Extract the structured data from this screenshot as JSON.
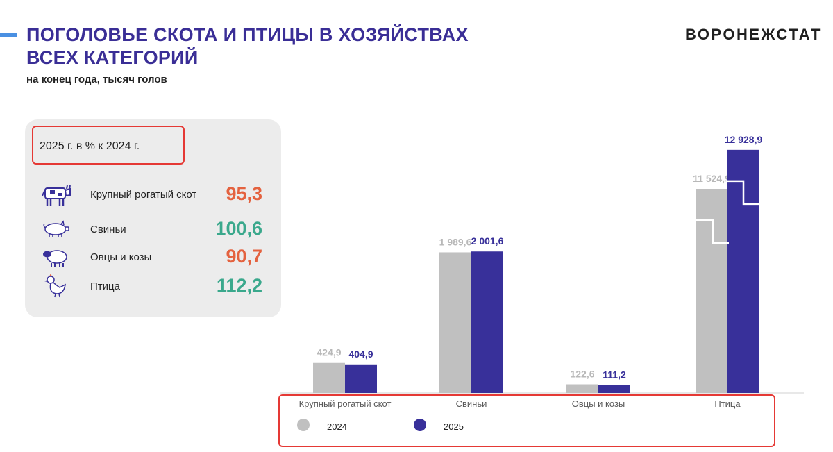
{
  "header": {
    "title_line1": "ПОГОЛОВЬЕ СКОТА И ПТИЦЫ В ХОЗЯЙСТВАХ",
    "title_line2": "ВСЕХ КАТЕГОРИЙ",
    "subtitle": "на конец года, тысяч голов",
    "brand": "ВОРОНЕЖСТАТ"
  },
  "panel": {
    "heading": "2025 г. в % к  2024 г.",
    "rows": [
      {
        "label": "Крупный рогатый скот",
        "value": "95,3",
        "icon": "cow-icon",
        "color": "#e4623f"
      },
      {
        "label": "Свиньи",
        "value": "100,6",
        "icon": "pig-icon",
        "color": "#3aa88c"
      },
      {
        "label": "Овцы и козы",
        "value": "90,7",
        "icon": "sheep-icon",
        "color": "#e4623f"
      },
      {
        "label": "Птица",
        "value": "112,2",
        "icon": "chicken-icon",
        "color": "#3aa88c"
      }
    ]
  },
  "chart_data": {
    "type": "bar",
    "categories": [
      "Крупный рогатый скот",
      "Свиньи",
      "Овцы и козы",
      "Птица"
    ],
    "series": [
      {
        "name": "2024",
        "values": [
          424.9,
          1989.6,
          122.6,
          11524.9
        ],
        "labels": [
          "424,9",
          "1 989,6",
          "122,6",
          "11 524,9"
        ],
        "color": "#c0c0c0",
        "label_color": "#b8b8b8"
      },
      {
        "name": "2025",
        "values": [
          404.9,
          2001.6,
          111.2,
          12928.9
        ],
        "labels": [
          "404,9",
          "2 001,6",
          "111,2",
          "12 928,9"
        ],
        "color": "#38309a",
        "label_color": "#38309a"
      }
    ],
    "axis_break": true,
    "legend_position": "bottom",
    "grid": false
  }
}
